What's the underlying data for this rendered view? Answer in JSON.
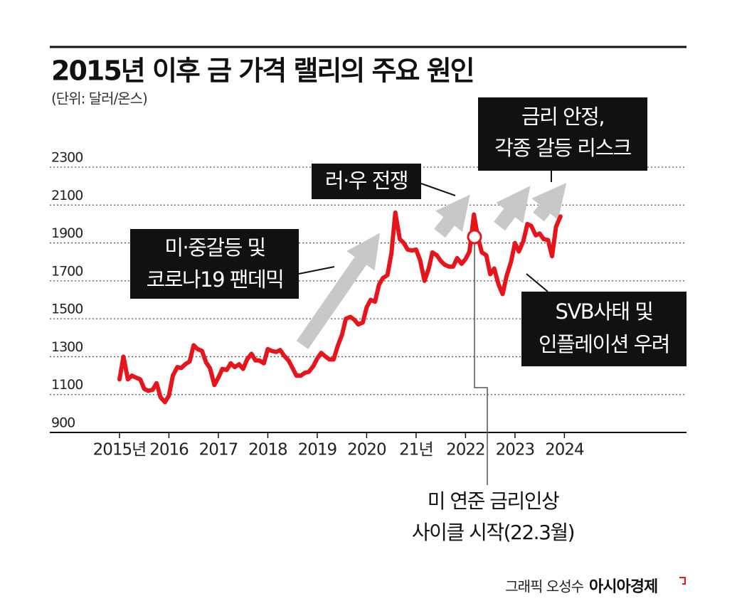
{
  "chart_data": {
    "type": "line",
    "title": "2015년 이후 금 가격 랠리의 주요 원인",
    "subtitle": "(단위: 달러/온스)",
    "credit": "그래픽 오성수",
    "source": "아시아경제",
    "xlim": [
      2013.59,
      2026.47
    ],
    "xticks": [
      {
        "value": 2015,
        "label": "2015년"
      },
      2016,
      2017,
      2018,
      2019,
      2020,
      {
        "value": 2021,
        "label": "21년"
      },
      2022,
      2023,
      2024
    ],
    "ylim": [
      900,
      2300
    ],
    "yticks": [
      900,
      1100,
      1300,
      1500,
      1700,
      1900,
      2100,
      2300
    ],
    "grid": true,
    "series": [
      {
        "name": "금 가격",
        "color": "#e8141b",
        "x": [
          2015,
          2015.08,
          2015.17,
          2015.25,
          2015.33,
          2015.42,
          2015.5,
          2015.58,
          2015.67,
          2015.75,
          2015.83,
          2015.92,
          2016,
          2016.08,
          2016.17,
          2016.25,
          2016.33,
          2016.42,
          2016.5,
          2016.58,
          2016.67,
          2016.75,
          2016.83,
          2016.92,
          2017,
          2017.08,
          2017.17,
          2017.25,
          2017.33,
          2017.42,
          2017.5,
          2017.58,
          2017.67,
          2017.75,
          2017.83,
          2017.92,
          2018,
          2018.08,
          2018.17,
          2018.25,
          2018.33,
          2018.42,
          2018.5,
          2018.58,
          2018.67,
          2018.75,
          2018.83,
          2018.92,
          2019,
          2019.08,
          2019.17,
          2019.25,
          2019.33,
          2019.42,
          2019.5,
          2019.58,
          2019.67,
          2019.75,
          2019.83,
          2019.92,
          2020,
          2020.08,
          2020.17,
          2020.25,
          2020.33,
          2020.42,
          2020.5,
          2020.58,
          2020.67,
          2020.75,
          2020.83,
          2020.92,
          2021,
          2021.08,
          2021.17,
          2021.25,
          2021.33,
          2021.42,
          2021.5,
          2021.58,
          2021.67,
          2021.75,
          2021.83,
          2021.92,
          2022,
          2022.08,
          2022.17,
          2022.25,
          2022.33,
          2022.42,
          2022.5,
          2022.58,
          2022.67,
          2022.75,
          2022.83,
          2022.92,
          2023,
          2023.08,
          2023.17,
          2023.25,
          2023.33,
          2023.42,
          2023.5,
          2023.58,
          2023.67,
          2023.75,
          2023.83,
          2023.92
        ],
        "values": [
          1180,
          1300,
          1180,
          1200,
          1190,
          1180,
          1130,
          1120,
          1125,
          1160,
          1085,
          1060,
          1095,
          1200,
          1245,
          1240,
          1260,
          1275,
          1360,
          1340,
          1330,
          1270,
          1240,
          1150,
          1190,
          1235,
          1230,
          1265,
          1245,
          1260,
          1235,
          1285,
          1315,
          1280,
          1280,
          1265,
          1340,
          1330,
          1325,
          1335,
          1305,
          1280,
          1240,
          1200,
          1200,
          1215,
          1220,
          1250,
          1290,
          1320,
          1300,
          1285,
          1285,
          1360,
          1415,
          1500,
          1510,
          1495,
          1470,
          1480,
          1560,
          1600,
          1590,
          1680,
          1715,
          1730,
          1845,
          2060,
          1920,
          1900,
          1865,
          1860,
          1865,
          1810,
          1700,
          1760,
          1850,
          1835,
          1805,
          1785,
          1775,
          1775,
          1820,
          1790,
          1815,
          1855,
          2050,
          1930,
          1850,
          1835,
          1735,
          1765,
          1680,
          1630,
          1725,
          1800,
          1900,
          1855,
          1910,
          2000,
          1990,
          1940,
          1950,
          1920,
          1915,
          1830,
          1985,
          2040
        ]
      }
    ],
    "annotations": [
      {
        "lines": [
          "미·중갈등 및",
          "코로나19 팬데믹"
        ]
      },
      {
        "lines": [
          "러·우 전쟁"
        ]
      },
      {
        "lines": [
          "금리 안정,",
          "각종 갈등 리스크"
        ]
      },
      {
        "lines": [
          "SVB사태 및",
          "인플레이션 우려"
        ]
      },
      {
        "lines": [
          "미 연준 금리인상",
          "사이클 시작(22.3월)"
        ]
      }
    ]
  }
}
